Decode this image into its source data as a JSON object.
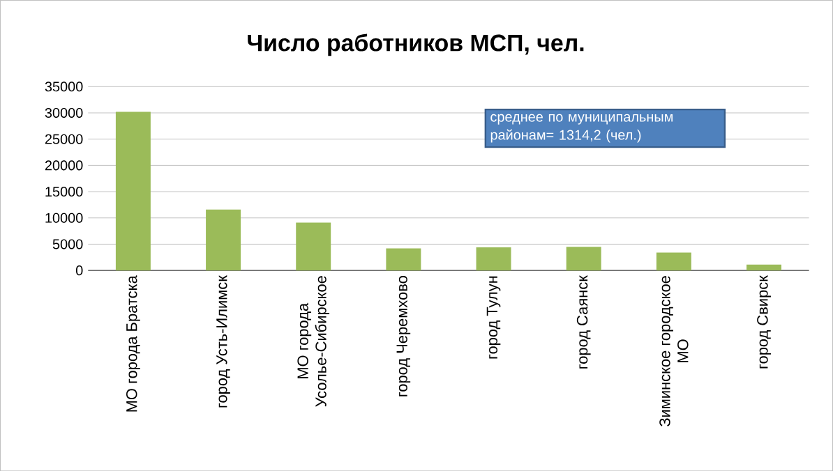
{
  "chart_data": {
    "type": "bar",
    "title": "Число работников МСП, чел.",
    "categories": [
      "МО города Братска",
      "город Усть-Илимск",
      "МО города Усолье-Сибирское",
      "город Черемхово",
      "город Тулун",
      "город Саянск",
      "Зиминское городское МО",
      "город Свирск"
    ],
    "values": [
      30200,
      11600,
      9100,
      4200,
      4400,
      4500,
      3400,
      1100
    ],
    "color": "#9bbb59",
    "ylim": [
      0,
      35000
    ],
    "yticks": [
      0,
      5000,
      10000,
      15000,
      20000,
      25000,
      30000,
      35000
    ],
    "grid": "y",
    "annotations": [
      "среднее по муниципальным районам= 1314,2  (чел.)"
    ]
  }
}
